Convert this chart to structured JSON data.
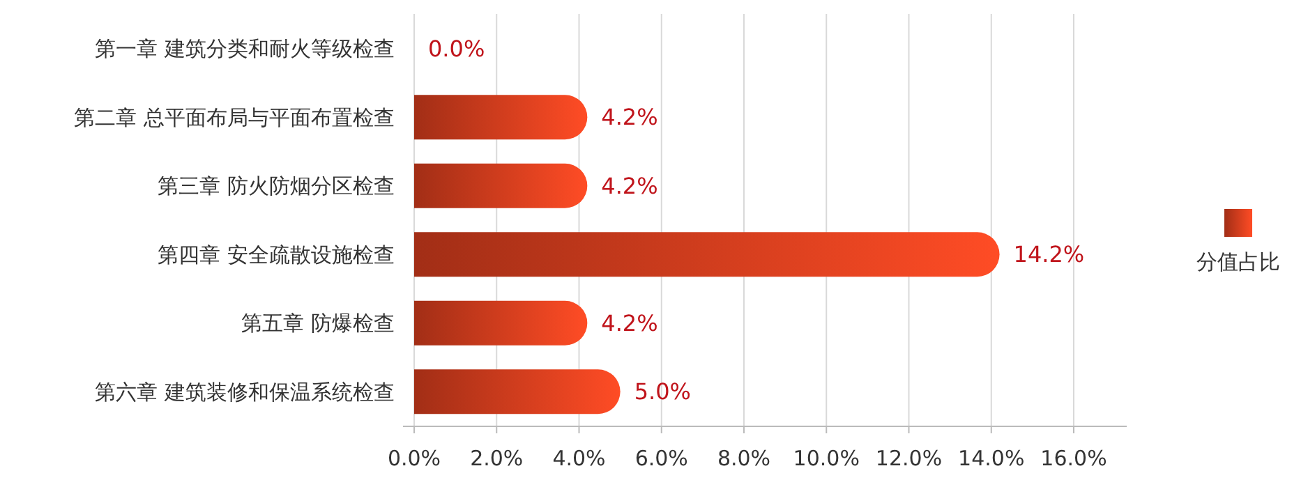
{
  "chart_data": {
    "type": "bar",
    "orientation": "horizontal",
    "categories": [
      "第一章  建筑分类和耐火等级检查",
      "第二章 总平面布局与平面布置检查",
      "第三章 防火防烟分区检查",
      "第四章  安全疏散设施检查",
      "第五章 防爆检查",
      "第六章 建筑装修和保温系统检查"
    ],
    "series": [
      {
        "name": "分值占比",
        "color": "#e0401f",
        "values": [
          0.0,
          4.2,
          4.2,
          14.2,
          4.2,
          5.0
        ],
        "value_labels": [
          "0.0%",
          "4.2%",
          "4.2%",
          "14.2%",
          "4.2%",
          "5.0%"
        ]
      }
    ],
    "xlim": [
      0,
      16
    ],
    "xticks": [
      {
        "value": 0,
        "label": "0.0%"
      },
      {
        "value": 2,
        "label": "2.0%"
      },
      {
        "value": 4,
        "label": "4.0%"
      },
      {
        "value": 6,
        "label": "6.0%"
      },
      {
        "value": 8,
        "label": "8.0%"
      },
      {
        "value": 10,
        "label": "10.0%"
      },
      {
        "value": 12,
        "label": "12.0%"
      },
      {
        "value": 14,
        "label": "14.0%"
      },
      {
        "value": 16,
        "label": "16.0%"
      }
    ],
    "grid": "x",
    "legend": "right"
  }
}
